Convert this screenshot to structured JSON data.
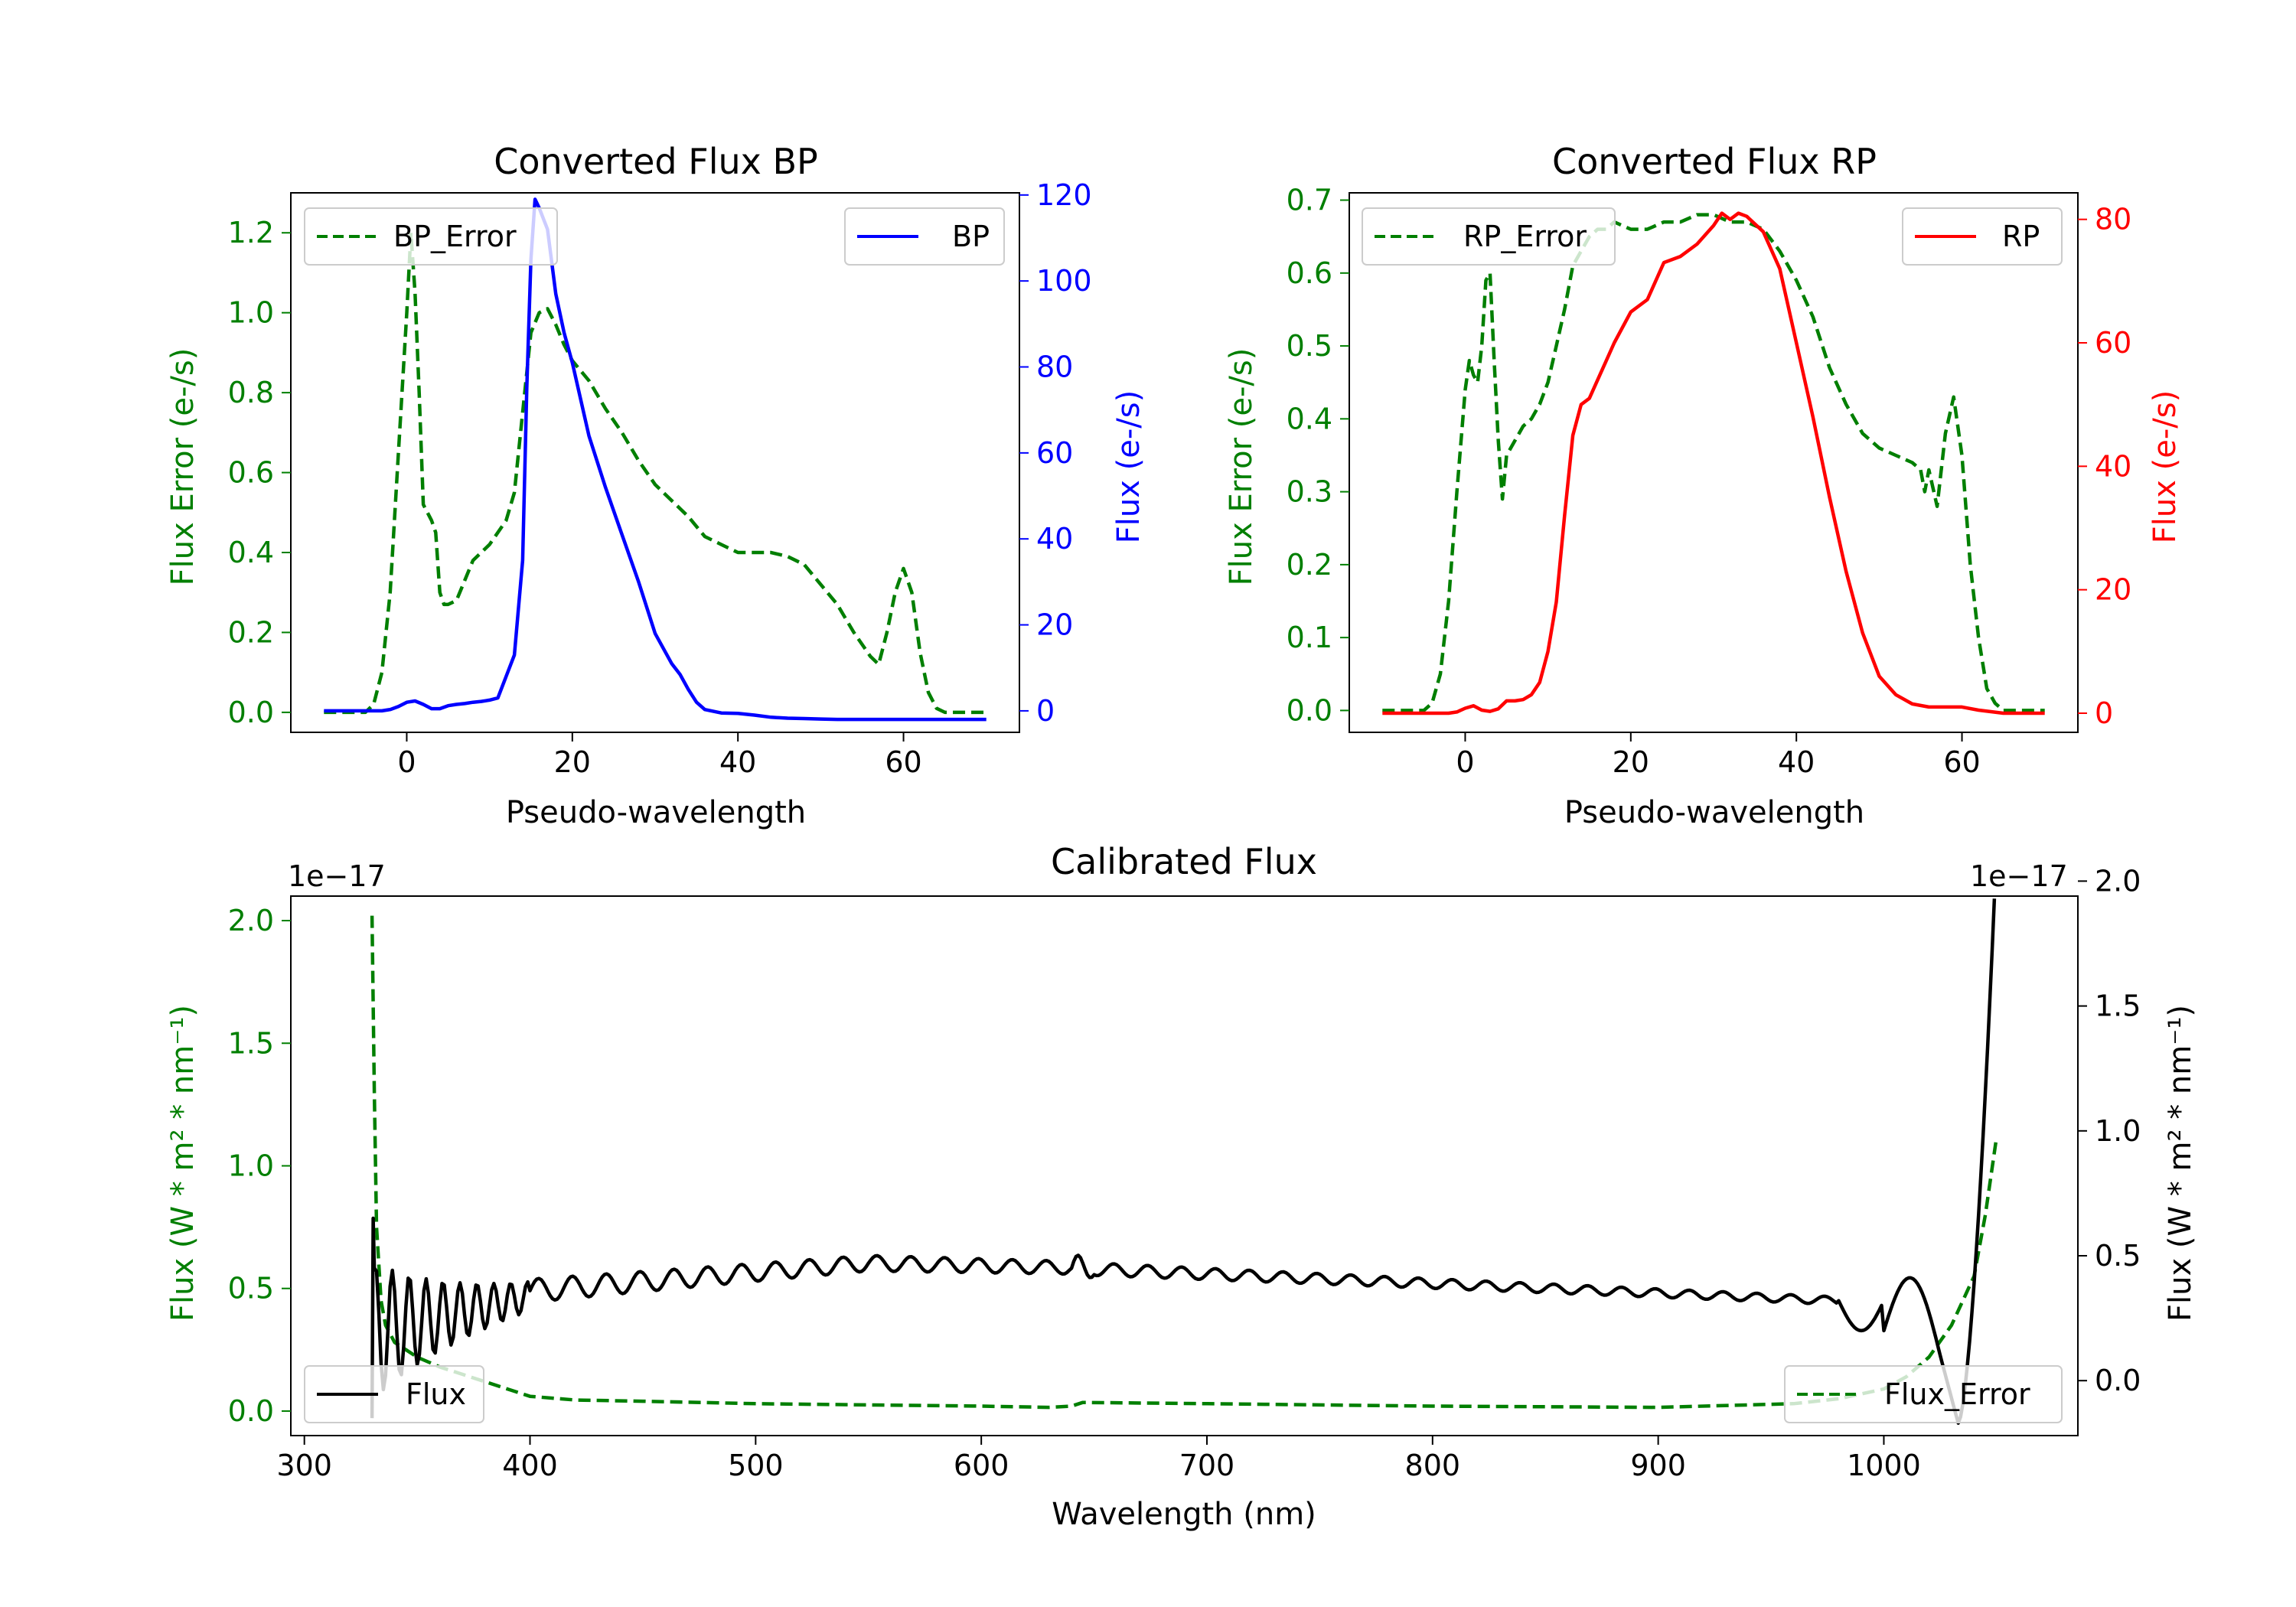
{
  "colors": {
    "green": "#007f00",
    "blue": "#0000ff",
    "red": "#ff0000",
    "black": "#000000"
  },
  "chart_data": [
    {
      "id": "bp",
      "type": "line",
      "title": "Converted Flux BP",
      "xlabel": "Pseudo-wavelength",
      "ylabel_left": "Flux Error (e-/s)",
      "ylabel_right": "Flux (e-/s)",
      "xlim": [
        -14,
        74
      ],
      "ylim_left": [
        -0.05,
        1.3
      ],
      "ylim_right": [
        -5,
        120.5
      ],
      "xticks": [
        0,
        20,
        40,
        60
      ],
      "yticks_left": [
        0.0,
        0.2,
        0.4,
        0.6,
        0.8,
        1.0,
        1.2
      ],
      "yticks_right": [
        0,
        20,
        40,
        60,
        80,
        100,
        120
      ],
      "legend_left": "BP_Error",
      "legend_right": "BP",
      "series": [
        {
          "name": "BP_Error",
          "axis": "left",
          "color": "green",
          "style": "dashed",
          "x": [
            -10,
            -5,
            -4,
            -3,
            -2,
            -1,
            0,
            0.5,
            1,
            1.5,
            2,
            3,
            3.5,
            4,
            4.5,
            5,
            6,
            7,
            8,
            9,
            10,
            11,
            12,
            13,
            14,
            15,
            16,
            17,
            18,
            19,
            20,
            22,
            24,
            26,
            28,
            30,
            32,
            34,
            36,
            38,
            40,
            42,
            44,
            46,
            48,
            50,
            52,
            54,
            56,
            57,
            58,
            59,
            60,
            61,
            62,
            63,
            64,
            65,
            70
          ],
          "y": [
            0,
            0,
            0.02,
            0.1,
            0.3,
            0.65,
            1.0,
            1.2,
            1.05,
            0.8,
            0.52,
            0.48,
            0.45,
            0.3,
            0.27,
            0.27,
            0.28,
            0.33,
            0.38,
            0.4,
            0.42,
            0.45,
            0.48,
            0.55,
            0.75,
            0.95,
            1.0,
            1.01,
            0.97,
            0.92,
            0.88,
            0.83,
            0.76,
            0.7,
            0.63,
            0.57,
            0.53,
            0.49,
            0.44,
            0.42,
            0.4,
            0.4,
            0.4,
            0.39,
            0.37,
            0.32,
            0.27,
            0.2,
            0.14,
            0.12,
            0.2,
            0.3,
            0.36,
            0.3,
            0.15,
            0.05,
            0.01,
            0,
            0
          ]
        },
        {
          "name": "BP",
          "axis": "right",
          "color": "blue",
          "style": "solid",
          "x": [
            -10,
            -5,
            -3,
            -2,
            -1,
            0,
            1,
            2,
            3,
            4,
            5,
            6,
            7,
            8,
            9,
            10,
            11,
            12,
            13,
            14,
            14.5,
            15,
            15.5,
            16,
            17,
            18,
            19,
            20,
            22,
            24,
            26,
            28,
            30,
            32,
            33,
            34,
            35,
            36,
            38,
            40,
            42,
            44,
            46,
            48,
            50,
            52,
            55,
            60,
            65,
            70
          ],
          "y": [
            0,
            0,
            0,
            0.3,
            1,
            2,
            2.3,
            1.5,
            0.5,
            0.5,
            1.2,
            1.5,
            1.7,
            2,
            2.2,
            2.5,
            3,
            8,
            13,
            35,
            75,
            105,
            119,
            117,
            112,
            97,
            88,
            81,
            64,
            52,
            41,
            30,
            18,
            11,
            8.5,
            5,
            2,
            0.3,
            -0.5,
            -0.6,
            -1,
            -1.5,
            -1.7,
            -1.8,
            -1.9,
            -2,
            -2,
            -2,
            -2,
            -2
          ]
        }
      ]
    },
    {
      "id": "rp",
      "type": "line",
      "title": "Converted Flux RP",
      "xlabel": "Pseudo-wavelength",
      "ylabel_left": "Flux Error (e-/s)",
      "ylabel_right": "Flux (e-/s)",
      "xlim": [
        -14,
        74
      ],
      "ylim_left": [
        -0.03,
        0.71
      ],
      "ylim_right": [
        -3.1,
        84.3
      ],
      "xticks": [
        0,
        20,
        40,
        60
      ],
      "yticks_left": [
        0.0,
        0.1,
        0.2,
        0.3,
        0.4,
        0.5,
        0.6,
        0.7
      ],
      "yticks_right": [
        0,
        20,
        40,
        60,
        80
      ],
      "legend_left": "RP_Error",
      "legend_right": "RP",
      "series": [
        {
          "name": "RP_Error",
          "axis": "left",
          "color": "green",
          "style": "dashed",
          "x": [
            -10,
            -5,
            -4,
            -3,
            -2,
            -1,
            0,
            0.5,
            1,
            1.5,
            2,
            2.5,
            3,
            3.5,
            4,
            4.5,
            5,
            6,
            7,
            8,
            9,
            10,
            11,
            12,
            13,
            14,
            15,
            16,
            17,
            18,
            20,
            22,
            24,
            26,
            28,
            30,
            32,
            34,
            36,
            38,
            40,
            42,
            44,
            46,
            48,
            50,
            52,
            54,
            55,
            55.5,
            56,
            57,
            58,
            59,
            60,
            61,
            62,
            63,
            64,
            65,
            70
          ],
          "y": [
            0,
            0,
            0.01,
            0.05,
            0.15,
            0.3,
            0.44,
            0.48,
            0.46,
            0.45,
            0.5,
            0.59,
            0.6,
            0.48,
            0.37,
            0.29,
            0.35,
            0.37,
            0.39,
            0.4,
            0.42,
            0.45,
            0.5,
            0.55,
            0.61,
            0.63,
            0.65,
            0.66,
            0.66,
            0.67,
            0.66,
            0.66,
            0.67,
            0.67,
            0.68,
            0.68,
            0.67,
            0.67,
            0.66,
            0.63,
            0.59,
            0.54,
            0.47,
            0.42,
            0.38,
            0.36,
            0.35,
            0.34,
            0.33,
            0.3,
            0.33,
            0.28,
            0.38,
            0.43,
            0.35,
            0.2,
            0.1,
            0.03,
            0.01,
            0,
            0
          ]
        },
        {
          "name": "RP",
          "axis": "right",
          "color": "red",
          "style": "solid",
          "x": [
            -10,
            -5,
            -3,
            -2,
            -1,
            0,
            1,
            2,
            3,
            4,
            5,
            6,
            7,
            8,
            9,
            10,
            11,
            12,
            13,
            14,
            15,
            16,
            17,
            18,
            20,
            22,
            24,
            26,
            28,
            30,
            31,
            32,
            33,
            34,
            36,
            38,
            40,
            42,
            44,
            46,
            48,
            50,
            52,
            54,
            56,
            58,
            60,
            62,
            65,
            70
          ],
          "y": [
            0,
            0,
            0,
            0,
            0.2,
            0.8,
            1.2,
            0.5,
            0.3,
            0.7,
            2,
            2,
            2.2,
            3,
            5,
            10,
            18,
            32,
            45,
            50,
            51,
            54,
            57,
            60,
            65,
            67,
            73,
            74,
            76,
            79,
            81,
            80,
            81,
            80.5,
            78,
            72,
            60,
            48,
            35,
            23,
            13,
            6,
            3,
            1.5,
            1,
            1,
            1,
            0.5,
            0,
            0
          ]
        }
      ]
    },
    {
      "id": "cal",
      "type": "line",
      "title": "Calibrated Flux",
      "xlabel": "Wavelength (nm)",
      "ylabel_left": "Flux (W * m² * nm⁻¹)",
      "ylabel_right": "Flux (W * m² * nm⁻¹)",
      "offset_left": "1e−17",
      "offset_right": "1e−17",
      "xlim": [
        294,
        1086
      ],
      "ylim_left": [
        -0.1,
        2.1
      ],
      "ylim_right": [
        -0.22,
        1.94
      ],
      "xticks": [
        300,
        400,
        500,
        600,
        700,
        800,
        900,
        1000
      ],
      "yticks_left": [
        0.0,
        0.5,
        1.0,
        1.5,
        2.0
      ],
      "yticks_right": [
        0.0,
        0.5,
        1.0,
        1.5,
        2.0
      ],
      "legend_left": "Flux",
      "legend_right": "Flux_Error",
      "series": [
        {
          "name": "Flux_Error",
          "axis": "left",
          "color": "green",
          "style": "dashed",
          "x": [
            330,
            331,
            332,
            334,
            336,
            340,
            345,
            350,
            360,
            370,
            380,
            390,
            400,
            420,
            450,
            500,
            550,
            600,
            630,
            640,
            645,
            700,
            800,
            900,
            960,
            980,
            1000,
            1010,
            1020,
            1030,
            1040,
            1045,
            1050
          ],
          "y": [
            2.02,
            1.3,
            0.75,
            0.45,
            0.35,
            0.28,
            0.25,
            0.22,
            0.18,
            0.15,
            0.12,
            0.09,
            0.06,
            0.045,
            0.04,
            0.03,
            0.025,
            0.02,
            0.015,
            0.02,
            0.035,
            0.03,
            0.02,
            0.015,
            0.03,
            0.05,
            0.09,
            0.14,
            0.22,
            0.35,
            0.55,
            0.8,
            1.12
          ]
        },
        {
          "name": "Flux",
          "axis": "right",
          "color": "black",
          "style": "solid",
          "gen": "wiggle"
        }
      ]
    }
  ]
}
